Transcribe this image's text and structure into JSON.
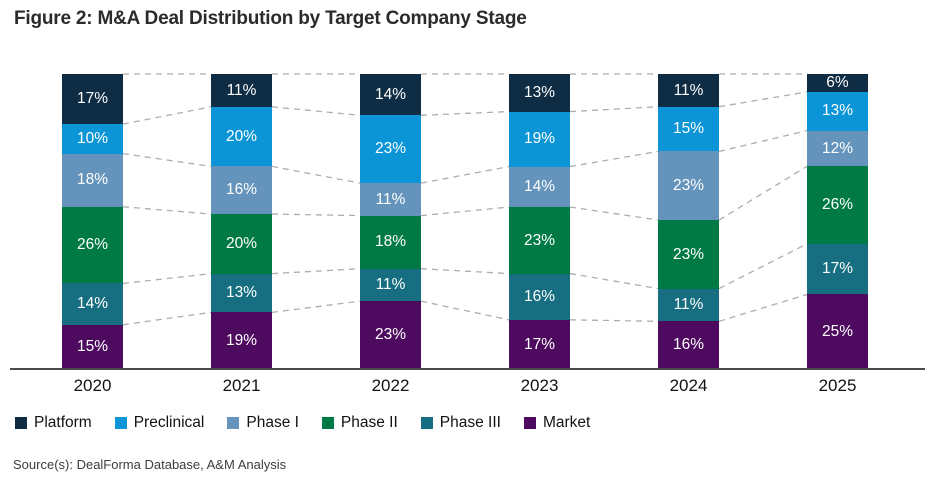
{
  "title": "Figure 2: M&A Deal Distribution by Target Company Stage",
  "source": "Source(s): DealForma Database, A&M Analysis",
  "chart_data": {
    "type": "bar",
    "stacked": true,
    "orientation": "vertical",
    "unit": "%",
    "title": "Figure 2: M&A Deal Distribution by Target Company Stage",
    "xlabel": "",
    "ylabel": "",
    "categories": [
      "2020",
      "2021",
      "2022",
      "2023",
      "2024",
      "2025"
    ],
    "series": [
      {
        "name": "Platform",
        "color": "#0e2c43",
        "values": [
          17,
          11,
          14,
          13,
          11,
          6
        ]
      },
      {
        "name": "Preclinical",
        "color": "#0b95d6",
        "values": [
          10,
          20,
          23,
          19,
          15,
          13
        ]
      },
      {
        "name": "Phase I",
        "color": "#6494bc",
        "values": [
          18,
          16,
          11,
          14,
          23,
          12
        ]
      },
      {
        "name": "Phase II",
        "color": "#007a45",
        "values": [
          26,
          20,
          18,
          23,
          23,
          26
        ]
      },
      {
        "name": "Phase III",
        "color": "#166e80",
        "values": [
          14,
          13,
          11,
          16,
          11,
          17
        ]
      },
      {
        "name": "Market",
        "color": "#4d0a5f",
        "values": [
          15,
          19,
          23,
          17,
          16,
          25
        ]
      }
    ],
    "value_labels": "inside-white",
    "legend_position": "bottom",
    "grid": false,
    "connector_lines": {
      "style": "dashed",
      "color": "#adadad"
    },
    "axis_line_color": "#4a4a4a"
  }
}
